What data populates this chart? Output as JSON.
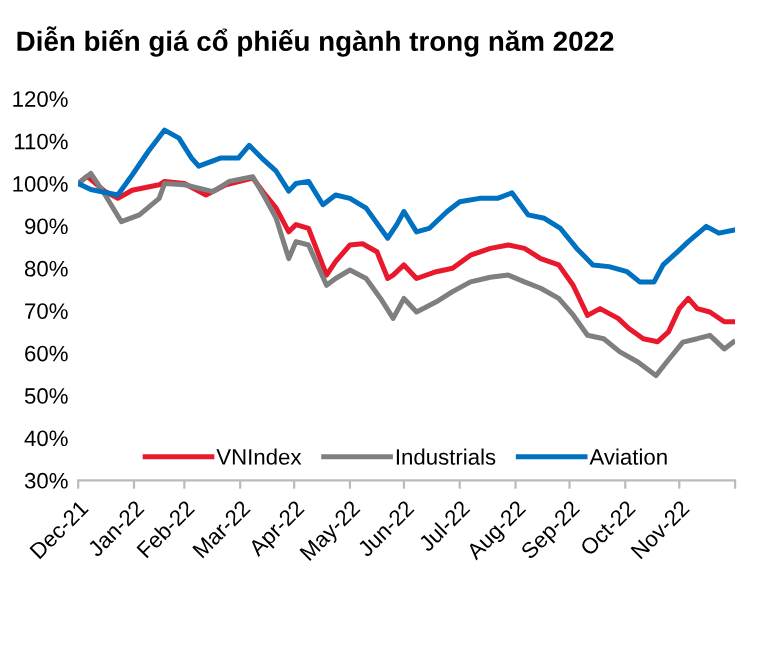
{
  "chart_data": {
    "type": "line",
    "title": "Diễn biến giá cổ phiếu ngành trong năm 2022",
    "xlim": [
      "2021-12-31",
      "2022-12-31"
    ],
    "xticks": [
      {
        "value": "2021-12-31",
        "label": "Dec-21"
      },
      {
        "value": "2022-01-31",
        "label": "Jan-22"
      },
      {
        "value": "2022-02-28",
        "label": "Feb-22"
      },
      {
        "value": "2022-03-31",
        "label": "Mar-22"
      },
      {
        "value": "2022-04-30",
        "label": "Apr-22"
      },
      {
        "value": "2022-05-31",
        "label": "May-22"
      },
      {
        "value": "2022-06-30",
        "label": "Jun-22"
      },
      {
        "value": "2022-07-31",
        "label": "Jul-22"
      },
      {
        "value": "2022-08-31",
        "label": "Aug-22"
      },
      {
        "value": "2022-09-30",
        "label": "Sep-22"
      },
      {
        "value": "2022-10-31",
        "label": "Oct-22"
      },
      {
        "value": "2022-11-30",
        "label": "Nov-22"
      },
      {
        "value": "2022-12-31",
        "label": null
      }
    ],
    "ylim": [
      30,
      120
    ],
    "yticks": [
      {
        "value": 30,
        "label": "30%"
      },
      {
        "value": 40,
        "label": "40%"
      },
      {
        "value": 50,
        "label": "50%"
      },
      {
        "value": 60,
        "label": "60%"
      },
      {
        "value": 70,
        "label": "70%"
      },
      {
        "value": 80,
        "label": "80%"
      },
      {
        "value": 90,
        "label": "90%"
      },
      {
        "value": 100,
        "label": "100%"
      },
      {
        "value": 110,
        "label": "110%"
      },
      {
        "value": 120,
        "label": "120%"
      }
    ],
    "grid": false,
    "legend": "bottom",
    "marker": "none",
    "line_style": "solid",
    "series": [
      {
        "name": "VNIndex",
        "color": "#e8192c",
        "x": [
          "2021-12-31",
          "2022-01-05",
          "2022-01-15",
          "2022-01-22",
          "2022-01-30",
          "2022-02-14",
          "2022-02-17",
          "2022-02-28",
          "2022-03-12",
          "2022-03-23",
          "2022-04-07",
          "2022-04-14",
          "2022-04-20",
          "2022-04-27",
          "2022-05-01",
          "2022-05-08",
          "2022-05-18",
          "2022-05-23",
          "2022-05-31",
          "2022-06-07",
          "2022-06-15",
          "2022-06-21",
          "2022-06-24",
          "2022-06-30",
          "2022-07-07",
          "2022-07-18",
          "2022-07-27",
          "2022-08-06",
          "2022-08-17",
          "2022-08-27",
          "2022-09-05",
          "2022-09-14",
          "2022-09-24",
          "2022-10-02",
          "2022-10-10",
          "2022-10-17",
          "2022-10-27",
          "2022-11-02",
          "2022-11-10",
          "2022-11-18",
          "2022-11-24",
          "2022-11-30",
          "2022-12-05",
          "2022-12-10",
          "2022-12-17",
          "2022-12-25",
          "2022-12-30"
        ],
        "values": [
          100,
          101.7,
          98.1,
          96.5,
          98.4,
          99.7,
          100.5,
          100,
          97.3,
          99.7,
          101.3,
          97.3,
          94.2,
          88.6,
          90.3,
          89.4,
          78.4,
          81.6,
          85.5,
          85.8,
          83.9,
          77.6,
          78.4,
          80.8,
          77.6,
          79.2,
          80,
          83.1,
          84.7,
          85.5,
          84.7,
          82.3,
          80.8,
          76,
          68.9,
          70.5,
          68.2,
          65.8,
          63.4,
          62.7,
          65,
          70.5,
          72.9,
          70.5,
          69.7,
          67.4,
          67.4
        ]
      },
      {
        "name": "Industrials",
        "color": "#7f7f7f",
        "x": [
          "2021-12-31",
          "2022-01-07",
          "2022-01-15",
          "2022-01-24",
          "2022-02-03",
          "2022-02-14",
          "2022-02-17",
          "2022-02-28",
          "2022-03-16",
          "2022-03-25",
          "2022-04-07",
          "2022-04-14",
          "2022-04-20",
          "2022-04-27",
          "2022-05-01",
          "2022-05-08",
          "2022-05-18",
          "2022-05-23",
          "2022-05-31",
          "2022-06-09",
          "2022-06-17",
          "2022-06-24",
          "2022-06-30",
          "2022-07-07",
          "2022-07-18",
          "2022-07-27",
          "2022-08-06",
          "2022-08-17",
          "2022-08-27",
          "2022-09-05",
          "2022-09-14",
          "2022-09-24",
          "2022-10-02",
          "2022-10-10",
          "2022-10-19",
          "2022-10-28",
          "2022-11-07",
          "2022-11-17",
          "2022-11-23",
          "2022-12-02",
          "2022-12-10",
          "2022-12-17",
          "2022-12-25",
          "2022-12-30"
        ],
        "values": [
          100,
          102.4,
          97.3,
          91,
          92.6,
          96.5,
          100,
          99.7,
          98.1,
          100.5,
          101.6,
          96.5,
          91.8,
          82.3,
          86.3,
          85.5,
          76,
          77.6,
          79.6,
          77.6,
          72.9,
          68.2,
          72.9,
          69.7,
          72.1,
          74.5,
          76.8,
          77.9,
          78.4,
          76.8,
          75.3,
          72.9,
          69,
          64.2,
          63.4,
          60.3,
          57.9,
          54.7,
          57.9,
          62.6,
          63.4,
          64.2,
          61,
          62.6
        ]
      },
      {
        "name": "Aviation",
        "color": "#0070c0",
        "x": [
          "2021-12-31",
          "2022-01-07",
          "2022-01-22",
          "2022-01-30",
          "2022-02-08",
          "2022-02-17",
          "2022-02-25",
          "2022-03-04",
          "2022-03-08",
          "2022-03-20",
          "2022-03-30",
          "2022-04-05",
          "2022-04-12",
          "2022-04-20",
          "2022-04-27",
          "2022-05-01",
          "2022-05-08",
          "2022-05-16",
          "2022-05-23",
          "2022-05-31",
          "2022-06-09",
          "2022-06-21",
          "2022-06-26",
          "2022-06-30",
          "2022-07-07",
          "2022-07-14",
          "2022-07-24",
          "2022-07-31",
          "2022-08-11",
          "2022-08-21",
          "2022-08-29",
          "2022-09-07",
          "2022-09-16",
          "2022-09-25",
          "2022-10-04",
          "2022-10-13",
          "2022-10-22",
          "2022-11-01",
          "2022-11-08",
          "2022-11-16",
          "2022-11-21",
          "2022-11-29",
          "2022-12-05",
          "2022-12-15",
          "2022-12-22",
          "2022-12-30"
        ],
        "values": [
          100,
          98.6,
          97.3,
          102,
          107.6,
          112.6,
          110.7,
          106,
          104.1,
          106,
          106,
          109,
          106,
          102.9,
          98.2,
          100,
          100.5,
          95,
          97.3,
          96.5,
          94.2,
          87.1,
          90.3,
          93.4,
          88.6,
          89.4,
          93.4,
          95.7,
          96.5,
          96.5,
          97.8,
          92.6,
          91.8,
          89.4,
          84.7,
          80.8,
          80.4,
          79.2,
          76.8,
          76.8,
          80.8,
          83.9,
          86.3,
          89.9,
          88.3,
          89
        ]
      }
    ]
  }
}
